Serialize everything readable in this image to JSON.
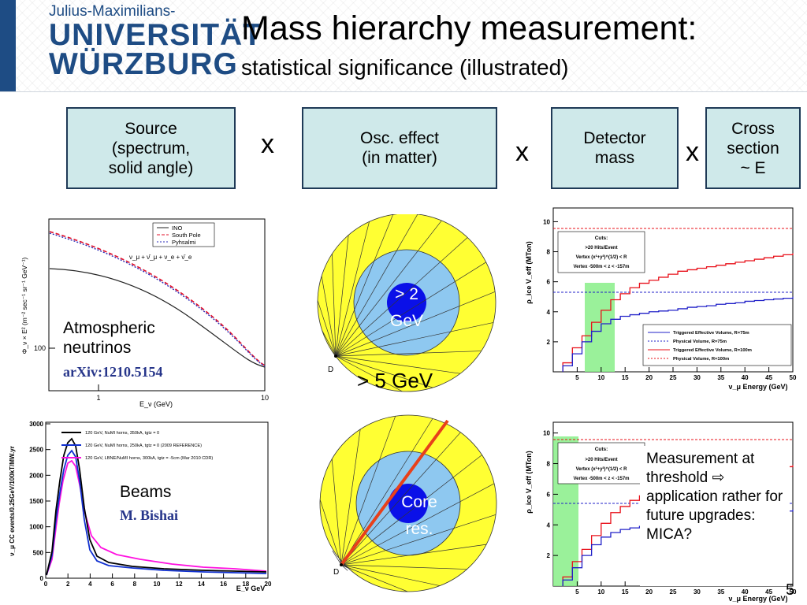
{
  "header": {
    "logo_top": "Julius-Maximilians-",
    "logo_line1": "UNIVERSITÄT",
    "logo_line2": "WÜRZBURG",
    "title": "Mass hierarchy measurement:",
    "subtitle": "statistical significance (illustrated)"
  },
  "factors": [
    {
      "lines": [
        "Source",
        "(spectrum,",
        "solid angle)"
      ]
    },
    {
      "lines": [
        "Osc. effect",
        "(in matter)"
      ]
    },
    {
      "lines": [
        "Detector",
        "mass"
      ]
    },
    {
      "lines": [
        "Cross",
        "section",
        "~ E"
      ]
    }
  ],
  "times_symbol": "x",
  "atm_panel": {
    "label_lines": [
      "Atmospheric",
      "neutrinos"
    ],
    "ref": "arXiv:1210.5154",
    "legend": [
      "INO",
      "South Pole",
      "Pyhsalmi"
    ],
    "formula": "ν_μ + ν̄_μ + ν_e + ν̄_e",
    "ylabel": "Φ_ν × E² (m⁻² sec⁻¹ sr⁻¹ GeV⁻¹)",
    "xlabel": "E_ν (GeV)",
    "yticks": [
      "100"
    ],
    "xticks": [
      "1",
      "10"
    ],
    "colors": {
      "ino": "#222222",
      "south_pole": "#e0102a",
      "pyhsalmi": "#2a2ab8"
    }
  },
  "beam_panel": {
    "label": "Beams",
    "ref": "M. Bishai",
    "legend": [
      "120 GeV, NuMI horns, 350kA, tgtz = 0",
      "120 GeV, NuMI horns, 250kA, tgtz = 0 (2009 REFERENCE)",
      "120 GeV, LBNE/NuMI horns, 300kA, tgtz = -5cm (Mar 2010 CDR)"
    ],
    "ylabel": "ν_μ CC events/0.25GeV/100kT/MW.yr",
    "xlabel": "E_ν GeV",
    "yticks": [
      "0",
      "500",
      "1000",
      "1500",
      "2000",
      "2500",
      "3000"
    ],
    "xticks": [
      "0",
      "2",
      "4",
      "6",
      "8",
      "10",
      "12",
      "14",
      "16",
      "18",
      "20"
    ],
    "colors": {
      "black": "#000000",
      "blue": "#1030d0",
      "magenta": "#ff10e0"
    }
  },
  "earth_top": {
    "inner_label_lines": [
      "> 2",
      "GeV"
    ],
    "outer_label": "> 5 GeV",
    "detector_label": "D",
    "colors": {
      "mantle": "#ffff33",
      "outer_core": "#8ec8f0",
      "inner_core": "#0a10e8"
    }
  },
  "earth_bottom": {
    "core_label_lines": [
      "Core",
      "res."
    ],
    "detector_label": "D",
    "colors": {
      "ray": "#e8401a"
    }
  },
  "veff_panel": {
    "cuts_title": "Cuts:",
    "cuts": [
      ">20 Hits/Event",
      "Vertex (x²+y²)^(1/2) < R",
      "Vertex -500m < z < -157m"
    ],
    "legend": [
      "Triggered Effective Volume, R=75m",
      "Physical Volume, R=75m",
      "Triggered Effective Volume, R=100m",
      "Physical Volume, R=100m"
    ],
    "ylabel": "ρ_ice V_eff (MTon)",
    "xlabel": "ν_μ Energy (GeV)",
    "yticks": [
      "2",
      "4",
      "6",
      "8",
      "10"
    ],
    "xticks": [
      "5",
      "10",
      "15",
      "20",
      "25",
      "30",
      "35",
      "40",
      "45",
      "50"
    ],
    "colors": {
      "red": "#e8101a",
      "blue": "#2020c8",
      "band": "#88ee88"
    }
  },
  "note": {
    "text": "Measurement at threshold ⇨ application rather for future upgrades: MICA?"
  },
  "page_number": "5"
}
